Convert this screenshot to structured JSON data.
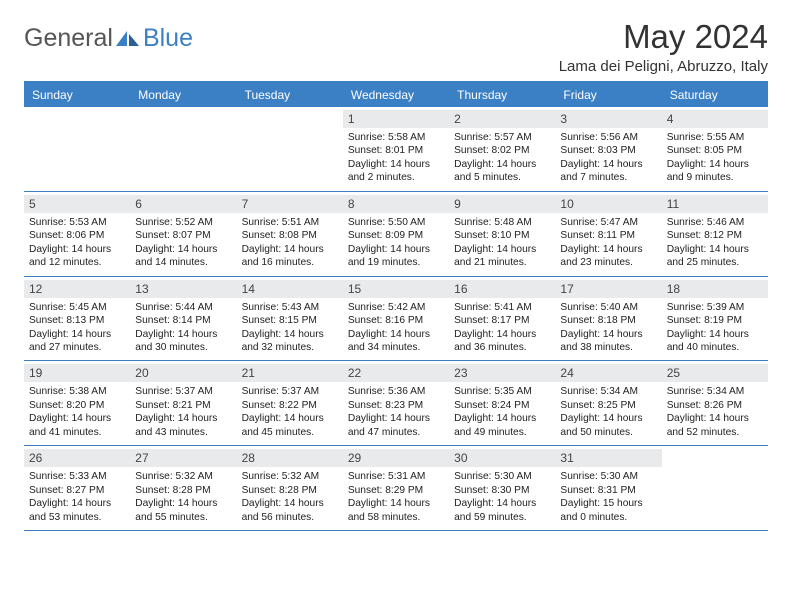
{
  "brand": {
    "part1": "General",
    "part2": "Blue"
  },
  "title": "May 2024",
  "location": "Lama dei Peligni, Abruzzo, Italy",
  "weekdays": [
    "Sunday",
    "Monday",
    "Tuesday",
    "Wednesday",
    "Thursday",
    "Friday",
    "Saturday"
  ],
  "colors": {
    "accent": "#3b7fc4",
    "daynum_bg": "#e9eaec",
    "text": "#222222",
    "header_text": "#333333"
  },
  "weeks": [
    [
      null,
      null,
      null,
      {
        "n": "1",
        "sr": "5:58 AM",
        "ss": "8:01 PM",
        "dl": "14 hours and 2 minutes."
      },
      {
        "n": "2",
        "sr": "5:57 AM",
        "ss": "8:02 PM",
        "dl": "14 hours and 5 minutes."
      },
      {
        "n": "3",
        "sr": "5:56 AM",
        "ss": "8:03 PM",
        "dl": "14 hours and 7 minutes."
      },
      {
        "n": "4",
        "sr": "5:55 AM",
        "ss": "8:05 PM",
        "dl": "14 hours and 9 minutes."
      }
    ],
    [
      {
        "n": "5",
        "sr": "5:53 AM",
        "ss": "8:06 PM",
        "dl": "14 hours and 12 minutes."
      },
      {
        "n": "6",
        "sr": "5:52 AM",
        "ss": "8:07 PM",
        "dl": "14 hours and 14 minutes."
      },
      {
        "n": "7",
        "sr": "5:51 AM",
        "ss": "8:08 PM",
        "dl": "14 hours and 16 minutes."
      },
      {
        "n": "8",
        "sr": "5:50 AM",
        "ss": "8:09 PM",
        "dl": "14 hours and 19 minutes."
      },
      {
        "n": "9",
        "sr": "5:48 AM",
        "ss": "8:10 PM",
        "dl": "14 hours and 21 minutes."
      },
      {
        "n": "10",
        "sr": "5:47 AM",
        "ss": "8:11 PM",
        "dl": "14 hours and 23 minutes."
      },
      {
        "n": "11",
        "sr": "5:46 AM",
        "ss": "8:12 PM",
        "dl": "14 hours and 25 minutes."
      }
    ],
    [
      {
        "n": "12",
        "sr": "5:45 AM",
        "ss": "8:13 PM",
        "dl": "14 hours and 27 minutes."
      },
      {
        "n": "13",
        "sr": "5:44 AM",
        "ss": "8:14 PM",
        "dl": "14 hours and 30 minutes."
      },
      {
        "n": "14",
        "sr": "5:43 AM",
        "ss": "8:15 PM",
        "dl": "14 hours and 32 minutes."
      },
      {
        "n": "15",
        "sr": "5:42 AM",
        "ss": "8:16 PM",
        "dl": "14 hours and 34 minutes."
      },
      {
        "n": "16",
        "sr": "5:41 AM",
        "ss": "8:17 PM",
        "dl": "14 hours and 36 minutes."
      },
      {
        "n": "17",
        "sr": "5:40 AM",
        "ss": "8:18 PM",
        "dl": "14 hours and 38 minutes."
      },
      {
        "n": "18",
        "sr": "5:39 AM",
        "ss": "8:19 PM",
        "dl": "14 hours and 40 minutes."
      }
    ],
    [
      {
        "n": "19",
        "sr": "5:38 AM",
        "ss": "8:20 PM",
        "dl": "14 hours and 41 minutes."
      },
      {
        "n": "20",
        "sr": "5:37 AM",
        "ss": "8:21 PM",
        "dl": "14 hours and 43 minutes."
      },
      {
        "n": "21",
        "sr": "5:37 AM",
        "ss": "8:22 PM",
        "dl": "14 hours and 45 minutes."
      },
      {
        "n": "22",
        "sr": "5:36 AM",
        "ss": "8:23 PM",
        "dl": "14 hours and 47 minutes."
      },
      {
        "n": "23",
        "sr": "5:35 AM",
        "ss": "8:24 PM",
        "dl": "14 hours and 49 minutes."
      },
      {
        "n": "24",
        "sr": "5:34 AM",
        "ss": "8:25 PM",
        "dl": "14 hours and 50 minutes."
      },
      {
        "n": "25",
        "sr": "5:34 AM",
        "ss": "8:26 PM",
        "dl": "14 hours and 52 minutes."
      }
    ],
    [
      {
        "n": "26",
        "sr": "5:33 AM",
        "ss": "8:27 PM",
        "dl": "14 hours and 53 minutes."
      },
      {
        "n": "27",
        "sr": "5:32 AM",
        "ss": "8:28 PM",
        "dl": "14 hours and 55 minutes."
      },
      {
        "n": "28",
        "sr": "5:32 AM",
        "ss": "8:28 PM",
        "dl": "14 hours and 56 minutes."
      },
      {
        "n": "29",
        "sr": "5:31 AM",
        "ss": "8:29 PM",
        "dl": "14 hours and 58 minutes."
      },
      {
        "n": "30",
        "sr": "5:30 AM",
        "ss": "8:30 PM",
        "dl": "14 hours and 59 minutes."
      },
      {
        "n": "31",
        "sr": "5:30 AM",
        "ss": "8:31 PM",
        "dl": "15 hours and 0 minutes."
      },
      null
    ]
  ],
  "labels": {
    "sunrise": "Sunrise: ",
    "sunset": "Sunset: ",
    "daylight": "Daylight: "
  }
}
